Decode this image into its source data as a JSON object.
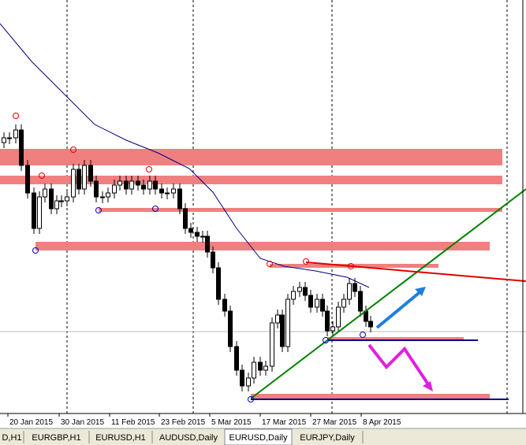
{
  "chart": {
    "x_labels": [
      "20 Jan 2015",
      "30 Jan 2015",
      "11 Feb 2015",
      "23 Feb 2015",
      "5 Mar 2015",
      "17 Mar 2015",
      "27 Mar 2015",
      "8 Apr 2015"
    ]
  },
  "tabs": [
    "D,H1",
    "EURGBP,H1",
    "EURUSD,H1",
    "AUDUSD,Daily",
    "EURUSD,Daily",
    "EURJPY,Daily"
  ],
  "active_tab": 4
}
